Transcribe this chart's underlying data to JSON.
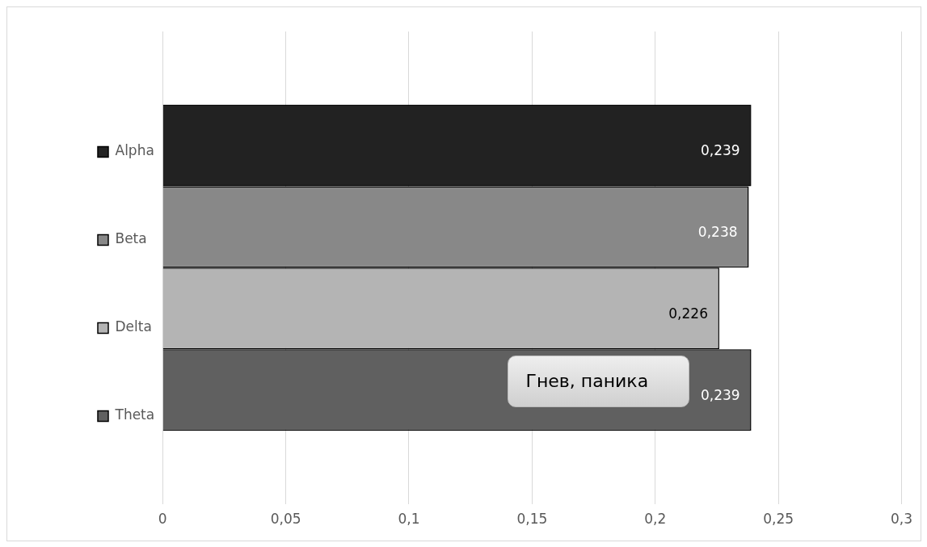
{
  "chart_data": {
    "type": "bar",
    "orientation": "horizontal",
    "categories": [
      null
    ],
    "series": [
      {
        "name": "Alpha",
        "color": "#222222",
        "values": [
          0.239
        ]
      },
      {
        "name": "Beta",
        "color": "#888888",
        "values": [
          0.238
        ]
      },
      {
        "name": "Delta",
        "color": "#b4b4b4",
        "values": [
          0.226
        ]
      },
      {
        "name": "Theta",
        "color": "#606060",
        "values": [
          0.239
        ]
      }
    ],
    "xlim": [
      0,
      0.3
    ],
    "xticks": [
      0,
      {
        "value": 0.05,
        "label": "0,05"
      },
      {
        "value": 0.1,
        "label": "0,1"
      },
      {
        "value": 0.15,
        "label": "0,15"
      },
      {
        "value": 0.2,
        "label": "0,2"
      },
      {
        "value": 0.25,
        "label": "0,25"
      },
      {
        "value": 0.3,
        "label": "0,3"
      }
    ],
    "value_labels": [
      "0,239",
      "0,238",
      "0,226",
      "0,239"
    ],
    "annotations": [
      "Гнев, паника"
    ],
    "grid": "x",
    "legend": "left"
  }
}
